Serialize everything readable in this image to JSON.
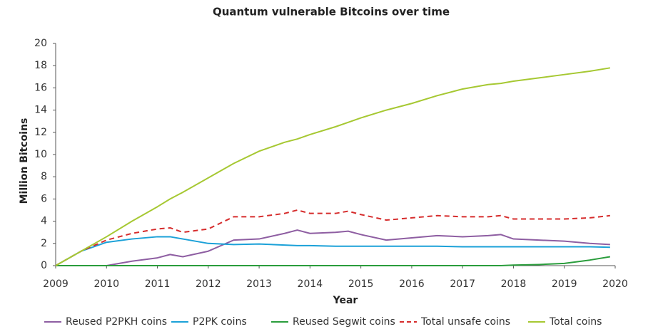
{
  "chart_data": {
    "type": "line",
    "title": "Quantum vulnerable Bitcoins over time",
    "x_label": "Year",
    "y_label": "Million Bitcoins",
    "x": [
      2009,
      2009.5,
      2010,
      2010.5,
      2011,
      2011.25,
      2011.5,
      2012,
      2012.5,
      2013,
      2013.5,
      2013.75,
      2014,
      2014.5,
      2014.75,
      2015,
      2015.5,
      2016,
      2016.5,
      2017,
      2017.5,
      2017.75,
      2018,
      2018.5,
      2019,
      2019.5,
      2019.9
    ],
    "series": [
      {
        "name": "Reused P2PKH coins",
        "color": "#8e5ea2",
        "values": [
          0,
          0,
          0,
          0.4,
          0.7,
          1.0,
          0.8,
          1.3,
          2.3,
          2.4,
          2.9,
          3.2,
          2.9,
          3.0,
          3.1,
          2.8,
          2.3,
          2.5,
          2.7,
          2.6,
          2.7,
          2.8,
          2.4,
          2.3,
          2.2,
          2.0,
          1.9
        ]
      },
      {
        "name": "P2PK coins",
        "color": "#1ba1d8",
        "values": [
          0,
          1.3,
          2.1,
          2.4,
          2.6,
          2.6,
          2.4,
          2.0,
          1.9,
          1.95,
          1.85,
          1.8,
          1.8,
          1.75,
          1.75,
          1.75,
          1.75,
          1.75,
          1.75,
          1.7,
          1.7,
          1.7,
          1.7,
          1.7,
          1.7,
          1.7,
          1.65
        ]
      },
      {
        "name": "Reused Segwit coins",
        "color": "#2a9d3c",
        "values": [
          0,
          0,
          0,
          0,
          0,
          0,
          0,
          0,
          0,
          0,
          0,
          0,
          0,
          0,
          0,
          0,
          0,
          0,
          0,
          0,
          0,
          0,
          0.05,
          0.1,
          0.2,
          0.5,
          0.8
        ]
      },
      {
        "name": "Total unsafe coins",
        "color": "#d62c2c",
        "style": "dashed",
        "values": [
          0,
          1.3,
          2.3,
          2.9,
          3.3,
          3.4,
          3.0,
          3.3,
          4.4,
          4.4,
          4.7,
          5.0,
          4.7,
          4.7,
          4.9,
          4.6,
          4.1,
          4.3,
          4.5,
          4.4,
          4.4,
          4.5,
          4.2,
          4.2,
          4.2,
          4.3,
          4.5
        ]
      },
      {
        "name": "Total coins",
        "color": "#a6c832",
        "values": [
          0,
          1.3,
          2.6,
          4.0,
          5.3,
          6.0,
          6.6,
          7.9,
          9.2,
          10.3,
          11.1,
          11.4,
          11.8,
          12.5,
          12.9,
          13.3,
          14.0,
          14.6,
          15.3,
          15.9,
          16.3,
          16.4,
          16.6,
          16.9,
          17.2,
          17.5,
          17.8
        ]
      }
    ],
    "xlim": [
      2009,
      2020
    ],
    "xticks": [
      2009,
      2010,
      2011,
      2012,
      2013,
      2014,
      2015,
      2016,
      2017,
      2018,
      2019,
      2020
    ],
    "ylim": [
      0,
      20
    ],
    "yticks": [
      0,
      2,
      4,
      6,
      8,
      10,
      12,
      14,
      16,
      18,
      20
    ],
    "legend": "bottom"
  }
}
